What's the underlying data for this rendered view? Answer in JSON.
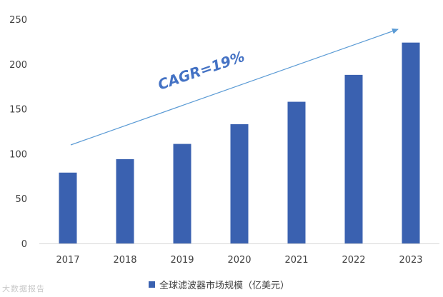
{
  "chart_data": {
    "type": "bar",
    "title": "",
    "xlabel": "",
    "ylabel": "",
    "categories": [
      "2017",
      "2018",
      "2019",
      "2020",
      "2021",
      "2022",
      "2023"
    ],
    "series": [
      {
        "name": "全球滤波器市场规模（亿美元）",
        "values": [
          79,
          94,
          111,
          133,
          158,
          188,
          224
        ]
      }
    ],
    "ylim": [
      0,
      250
    ],
    "yticks": [
      0,
      50,
      100,
      150,
      200,
      250
    ],
    "grid": false,
    "legend": "bottom-center",
    "annotation": {
      "text": "CAGR=19%",
      "kind": "trend-arrow"
    },
    "colors": {
      "bar": "#3a61b0",
      "arrow": "#5b9bd5",
      "annotation_text": "#4472c4"
    }
  },
  "legend_label": "全球滤波器市场规模（亿美元）",
  "watermark": "大数据报告"
}
